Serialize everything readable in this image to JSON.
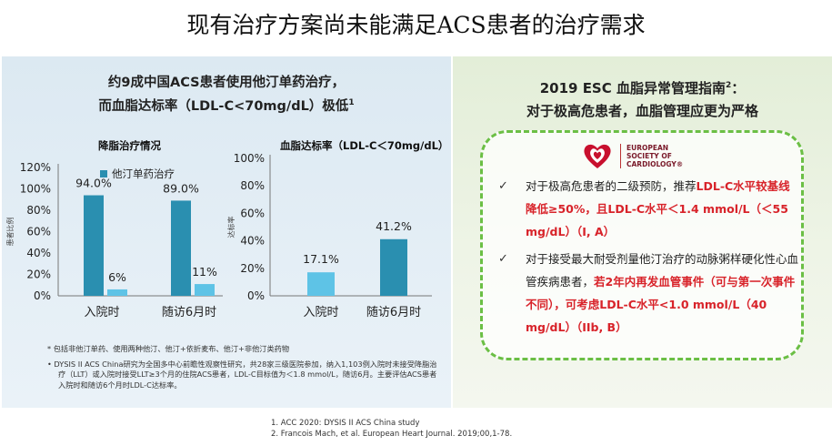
{
  "title": "现有治疗方案尚未能满足ACS患者的治疗需求",
  "left": {
    "headline_line1": "约9成中国ACS患者使用他汀单药治疗，",
    "headline_line2": "而血脂达标率（LDL-C<70mg/dL）极低",
    "headline_sup": "1"
  },
  "chart_data": [
    {
      "type": "bar",
      "title": "降脂治疗情况",
      "ylabel": "患者比例",
      "ylim": [
        0,
        120
      ],
      "yticks": [
        "0%",
        "20%",
        "40%",
        "60%",
        "80%",
        "100%",
        "120%"
      ],
      "categories": [
        "入院时",
        "随访6月时"
      ],
      "series": [
        {
          "name": "他汀单药治疗",
          "values": [
            94.0,
            89.0
          ],
          "labels": [
            "94.0%",
            "89.0%"
          ],
          "color": "#2a8fb0"
        },
        {
          "values": [
            6,
            11
          ],
          "labels": [
            "6%",
            "11%"
          ],
          "color": "#5ec3e6"
        }
      ],
      "legend": "top"
    },
    {
      "type": "bar",
      "title": "血脂达标率（LDL-C＜70mg/dL）",
      "ylabel": "达标率",
      "ylim": [
        0,
        100
      ],
      "yticks": [
        "0%",
        "20%",
        "40%",
        "60%",
        "80%",
        "100%"
      ],
      "categories": [
        "入院时",
        "随访6月时"
      ],
      "values": [
        17.1,
        41.2
      ],
      "labels": [
        "17.1%",
        "41.2%"
      ],
      "colors": [
        "#5ec3e6",
        "#2a8fb0"
      ]
    }
  ],
  "notes": {
    "n1": "* 包括非他汀单药、使用两种他汀、他汀+依折麦布、他汀+非他汀类药物",
    "n2": "• DYSIS II ACS China研究为全国多中心前瞻性观察性研究，共28家三级医院参加，纳入1,103例入院时未接受降脂治疗（LLT）或入院时接受LLT≥3个月的住院ACS患者，LDL-C目标值为＜1.8 mmol/L，随访6月。主要评估ACS患者入院时和随访6个月时LDL-C达标率。"
  },
  "right": {
    "headline_line1": "2019 ESC 血脂异常管理指南",
    "headline_sup": "2",
    "headline_colon": "：",
    "headline_line2": "对于极高危患者，血脂管理应更为严格",
    "logo_text": [
      "EUROPEAN",
      "SOCIETY OF",
      "CARDIOLOGY®"
    ],
    "rec1": {
      "a": "对于极高危患者的二级预防，推荐",
      "b": "LDL-C水平较基线降低≥50%，且LDL-C水平＜1.4 mmol/L（＜55 mg/dL）",
      "c": "（I, A）"
    },
    "rec2": {
      "a": "对于接受最大耐受剂量他汀治疗的动脉粥样硬化性心血管疾病患者，",
      "b": "若2年内再发血管事件（可与第一次事件不同），可考虑LDL-C水平<1.0 mmol/L（40 mg/dL）",
      "c": "（IIb, B）"
    }
  },
  "references": [
    "1. ACC 2020: DYSIS II ACS China study",
    "2. Francois Mach, et al. European Heart Journal. 2019;00,1-78."
  ],
  "colors": {
    "dark_bar": "#2a8fb0",
    "light_bar": "#5ec3e6",
    "accent_red": "#d8232a",
    "dash_green": "#6bbf45"
  }
}
